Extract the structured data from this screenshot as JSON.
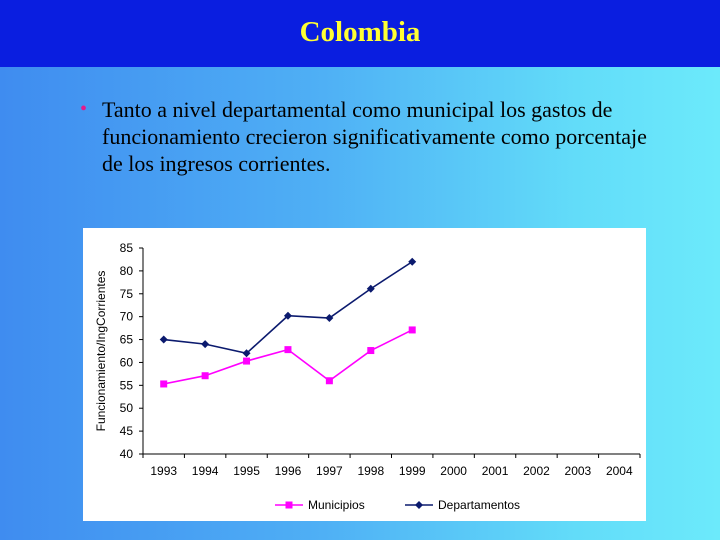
{
  "title": "Colombia",
  "bullet": "Tanto a nivel departamental como municipal los gastos de funcionamiento crecieron significativamente como porcentaje de los ingresos corrientes.",
  "bullet_color": "#e21a8a",
  "colors": {
    "title_bar": "#0a1ee0",
    "title_text": "#ffff33"
  },
  "chart_data": {
    "type": "line",
    "x": [
      "1993",
      "1994",
      "1995",
      "1996",
      "1997",
      "1998",
      "1999",
      "2000",
      "2001",
      "2002",
      "2003",
      "2004"
    ],
    "ylabel": "Funcionamiento/IngCorrientes",
    "ylim": [
      40,
      85
    ],
    "yticks": [
      40,
      45,
      50,
      55,
      60,
      65,
      70,
      75,
      80,
      85
    ],
    "grid": false,
    "legend": "bottom",
    "series": [
      {
        "name": "Municipios",
        "color": "#ff00ff",
        "marker": "square",
        "values": [
          55.3,
          57.1,
          60.3,
          62.8,
          56.0,
          62.6,
          67.1,
          null,
          null,
          null,
          null,
          null
        ]
      },
      {
        "name": "Departamentos",
        "color": "#0b1a6e",
        "marker": "diamond",
        "values": [
          65.0,
          64.0,
          62.0,
          70.2,
          69.7,
          76.1,
          82.0,
          null,
          null,
          null,
          null,
          null
        ]
      }
    ]
  }
}
